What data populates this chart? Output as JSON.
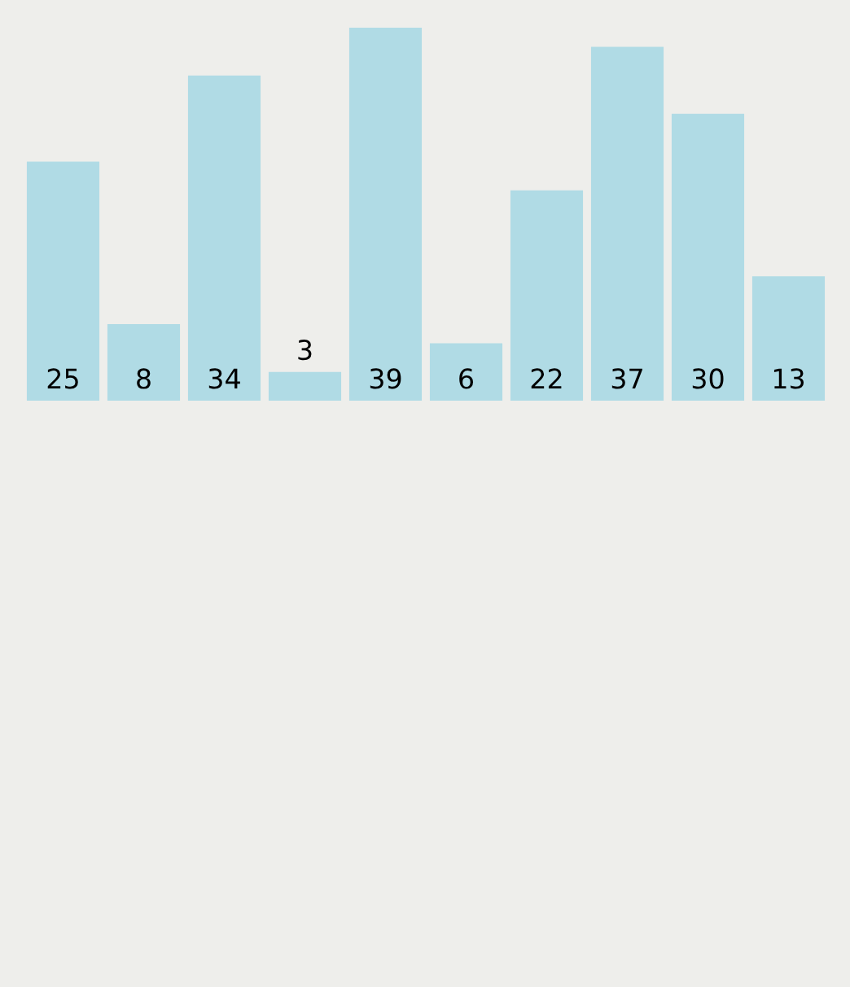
{
  "chart_data": {
    "type": "bar",
    "categories": [
      null,
      null,
      null,
      null,
      null,
      null,
      null,
      null,
      null,
      null
    ],
    "values": [
      25,
      8,
      34,
      3,
      39,
      6,
      22,
      37,
      30,
      13
    ],
    "color": "#b0dbe5",
    "data_labels": true,
    "grid": false,
    "legend": false
  }
}
